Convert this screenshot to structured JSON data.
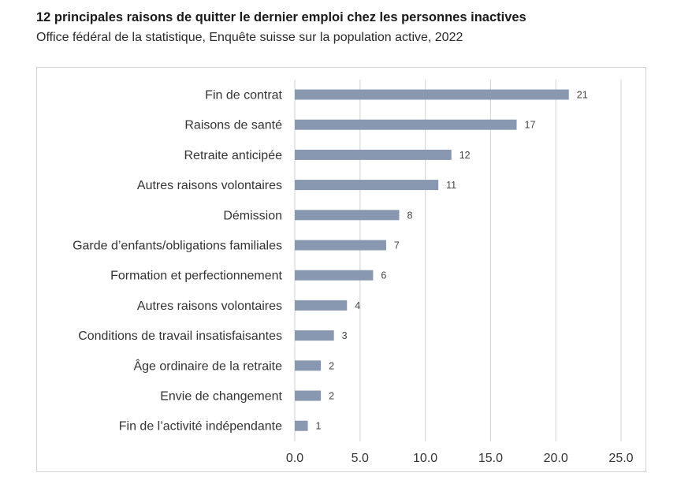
{
  "header": {
    "title": "12 principales raisons de quitter le dernier emploi chez les personnes inactives",
    "subtitle": "Office fédéral de la statistique, Enquête suisse sur la population active, 2022"
  },
  "chart_data": {
    "type": "bar",
    "orientation": "horizontal",
    "categories": [
      "Fin de contrat",
      "Raisons de santé",
      "Retraite anticipée",
      "Autres raisons volontaires",
      "Démission",
      "Garde d’enfants/obligations familiales",
      "Formation et perfectionnement",
      "Autres raisons volontaires",
      "Conditions de travail insatisfaisantes",
      "Âge ordinaire de la retraite",
      "Envie de changement",
      "Fin de l’activité indépendante"
    ],
    "values": [
      21,
      17,
      12,
      11,
      8,
      7,
      6,
      4,
      3,
      2,
      2,
      1
    ],
    "data_labels": [
      "21",
      "17",
      "12",
      "11",
      "8",
      "7",
      "6",
      "4",
      "3",
      "2",
      "2",
      "1"
    ],
    "xlim": [
      0,
      25
    ],
    "xticks": [
      0,
      5,
      10,
      15,
      20,
      25
    ],
    "xtick_labels": [
      "0.0",
      "5.0",
      "10.0",
      "15.0",
      "20.0",
      "25.0"
    ],
    "grid": "vertical",
    "bar_color": "#8898b0",
    "grid_color": "#d9d9d9",
    "title": "12 principales raisons de quitter le dernier emploi chez les personnes inactives",
    "subtitle": "Office fédéral de la statistique, Enquête suisse sur la population active, 2022"
  }
}
